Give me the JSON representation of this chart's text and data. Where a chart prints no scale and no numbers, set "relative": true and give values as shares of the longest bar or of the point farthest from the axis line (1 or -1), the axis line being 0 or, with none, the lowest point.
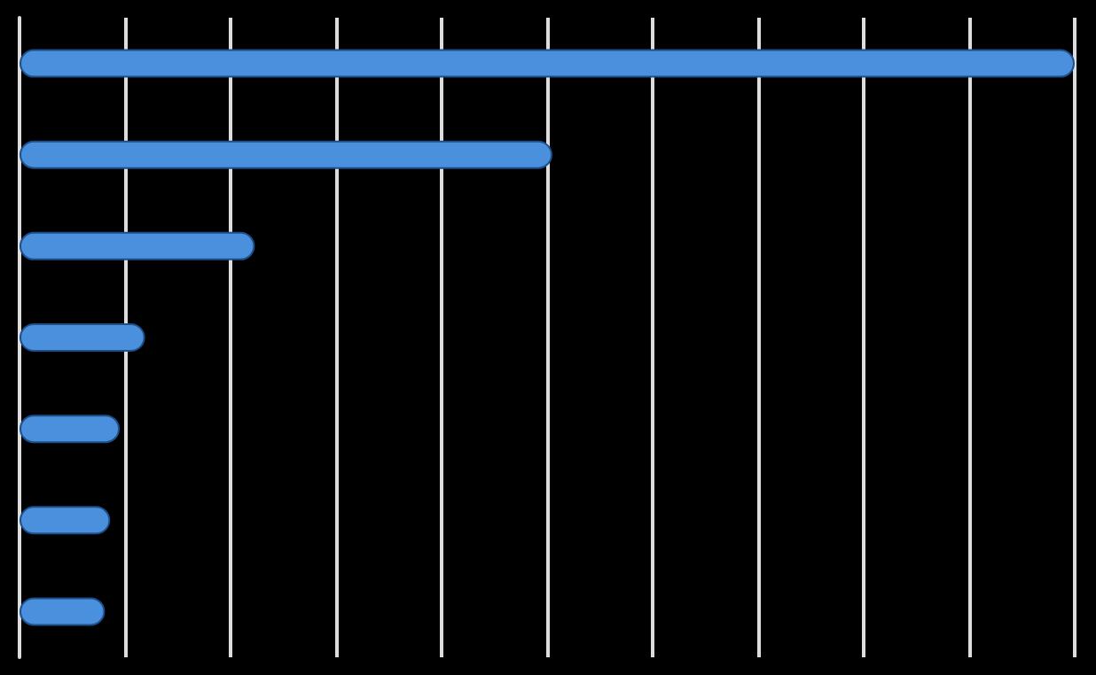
{
  "chart_data": {
    "type": "bar",
    "orientation": "horizontal",
    "relative": true,
    "grid": "x",
    "categories": [
      null,
      null,
      null,
      null,
      null,
      null,
      null
    ],
    "series": [
      {
        "color": "#4a90dc",
        "values": [
          1,
          0.505,
          0.223,
          0.119,
          0.095,
          0.086,
          0.081
        ]
      }
    ]
  }
}
